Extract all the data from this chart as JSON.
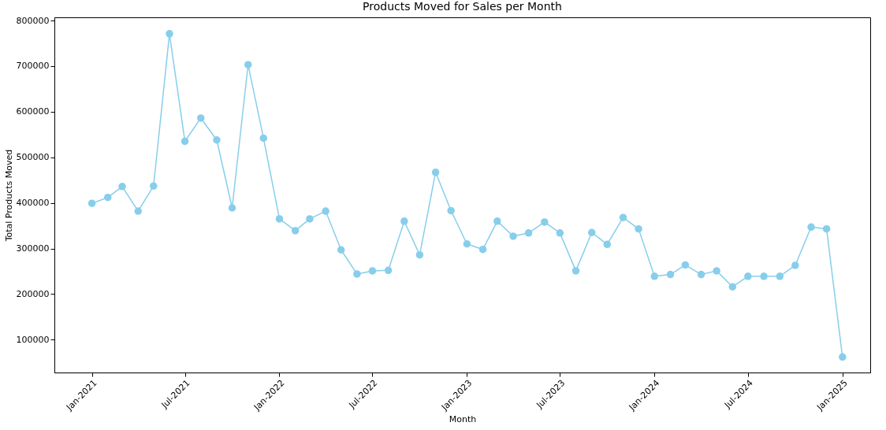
{
  "chart_data": {
    "type": "line",
    "title": "Products Moved for Sales per Month",
    "xlabel": "Month",
    "ylabel": "Total Products Moved",
    "x": [
      "2021-01-01",
      "2021-02-01",
      "2021-03-01",
      "2021-04-01",
      "2021-05-01",
      "2021-06-01",
      "2021-07-01",
      "2021-08-01",
      "2021-09-01",
      "2021-10-01",
      "2021-11-01",
      "2021-12-01",
      "2022-01-01",
      "2022-02-01",
      "2022-03-01",
      "2022-04-01",
      "2022-05-01",
      "2022-06-01",
      "2022-07-01",
      "2022-08-01",
      "2022-09-01",
      "2022-10-01",
      "2022-11-01",
      "2022-12-01",
      "2023-01-01",
      "2023-02-01",
      "2023-03-01",
      "2023-04-01",
      "2023-05-01",
      "2023-06-01",
      "2023-07-01",
      "2023-08-01",
      "2023-09-01",
      "2023-10-01",
      "2023-11-01",
      "2023-12-01",
      "2024-01-01",
      "2024-02-01",
      "2024-03-01",
      "2024-04-01",
      "2024-05-01",
      "2024-06-01",
      "2024-07-01",
      "2024-08-01",
      "2024-09-01",
      "2024-10-01",
      "2024-11-01",
      "2024-12-01",
      "2025-01-01"
    ],
    "series": [
      {
        "color": "#87ceeb",
        "values": [
          399000,
          412000,
          436000,
          382000,
          437000,
          771000,
          535000,
          586000,
          538000,
          389000,
          703000,
          542000,
          365000,
          339000,
          365000,
          382000,
          297000,
          244000,
          251000,
          252000,
          360000,
          286000,
          467000,
          383000,
          310000,
          298000,
          360000,
          327000,
          334000,
          358000,
          334000,
          251000,
          335000,
          309000,
          368000,
          343000,
          239000,
          243000,
          264000,
          243000,
          251000,
          216000,
          239000,
          239000,
          239000,
          263000,
          347000,
          343000,
          62000
        ]
      }
    ],
    "xlim": [
      "2020-10-20",
      "2025-02-24"
    ],
    "ylim": [
      28000,
      807000
    ],
    "xticks": [
      {
        "value": "2021-01-01",
        "label": "Jan-2021"
      },
      {
        "value": "2021-07-01",
        "label": "Jul-2021"
      },
      {
        "value": "2022-01-01",
        "label": "Jan-2022"
      },
      {
        "value": "2022-07-01",
        "label": "Jul-2022"
      },
      {
        "value": "2023-01-01",
        "label": "Jan-2023"
      },
      {
        "value": "2023-07-01",
        "label": "Jul-2023"
      },
      {
        "value": "2024-01-01",
        "label": "Jan-2024"
      },
      {
        "value": "2024-07-01",
        "label": "Jul-2024"
      },
      {
        "value": "2025-01-01",
        "label": "Jan-2025"
      }
    ],
    "yticks": [
      100000,
      200000,
      300000,
      400000,
      500000,
      600000,
      700000,
      800000
    ],
    "marker": "circle",
    "line_style": "solid",
    "grid": false
  }
}
